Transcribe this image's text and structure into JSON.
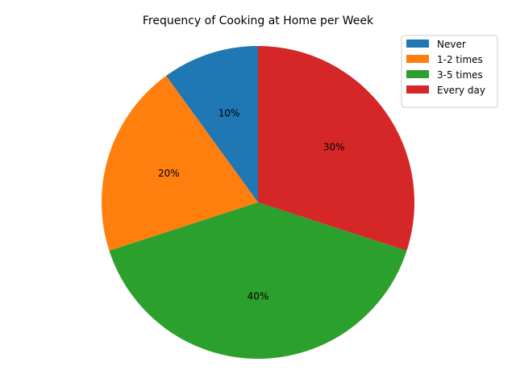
{
  "chart_data": {
    "type": "pie",
    "title": "Frequency of Cooking at Home per Week",
    "categories": [
      "Never",
      "1-2 times",
      "3-5 times",
      "Every day"
    ],
    "values": [
      10,
      20,
      40,
      30
    ],
    "labels": [
      "10%",
      "20%",
      "40%",
      "30%"
    ],
    "colors": [
      "#1f77b4",
      "#ff7f0e",
      "#2ca02c",
      "#d62728"
    ],
    "start_angle_deg": 90,
    "direction": "counterclockwise",
    "legend_position": "top-right"
  }
}
